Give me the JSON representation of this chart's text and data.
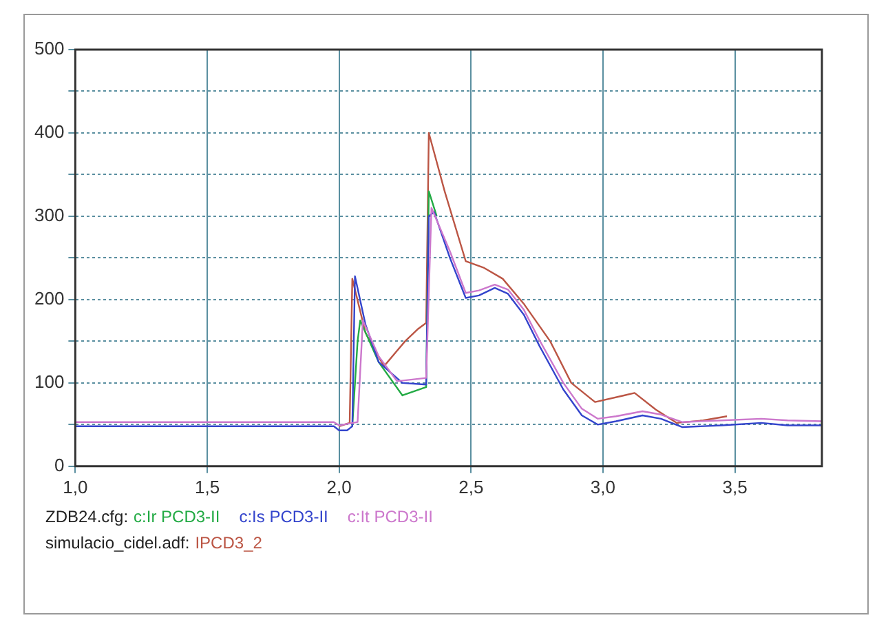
{
  "chart_data": {
    "type": "line",
    "xlim": [
      1.0,
      3.83
    ],
    "xticks": [
      {
        "value": 1.0,
        "label": "1,0"
      },
      {
        "value": 1.5,
        "label": "1,5"
      },
      {
        "value": 2.0,
        "label": "2,0"
      },
      {
        "value": 2.5,
        "label": "2,5"
      },
      {
        "value": 3.0,
        "label": "3,0"
      },
      {
        "value": 3.5,
        "label": "3,5"
      }
    ],
    "ylim": [
      0,
      500
    ],
    "yticks": [
      0,
      {
        "value": 50,
        "label": null
      },
      100,
      {
        "value": 150,
        "label": null
      },
      200,
      {
        "value": 250,
        "label": null
      },
      300,
      {
        "value": 350,
        "label": null
      },
      400,
      {
        "value": 450,
        "label": null
      },
      500
    ],
    "grid": true,
    "legend": "bottom",
    "marker": "none",
    "line_style": "solid",
    "annotations": [
      "ZDB24.cfg:",
      "simulacio_cidel.adf:"
    ],
    "series": [
      {
        "name": "c:Ir PCD3-II",
        "color": "#22aa44",
        "x": [
          2.05,
          2.07,
          2.08,
          2.15,
          2.24,
          2.33,
          2.34,
          2.37
        ],
        "values": [
          48,
          150,
          175,
          125,
          85,
          95,
          330,
          300
        ]
      },
      {
        "name": "c:Is PCD3-II",
        "color": "#3344cc",
        "x": [
          1.0,
          1.98,
          2.0,
          2.03,
          2.05,
          2.06,
          2.1,
          2.15,
          2.24,
          2.33,
          2.34,
          2.36,
          2.42,
          2.48,
          2.53,
          2.59,
          2.64,
          2.7,
          2.76,
          2.85,
          2.92,
          2.98,
          3.05,
          3.15,
          3.22,
          3.3,
          3.45,
          3.6,
          3.7,
          3.83
        ],
        "values": [
          48,
          48,
          43,
          43,
          48,
          228,
          170,
          125,
          100,
          98,
          300,
          305,
          250,
          202,
          205,
          214,
          207,
          182,
          144,
          92,
          61,
          50,
          54,
          61,
          57,
          47,
          49,
          52,
          49,
          49
        ]
      },
      {
        "name": "c:It PCD3-II",
        "color": "#cc77cc",
        "x": [
          1.0,
          1.98,
          2.0,
          2.07,
          2.09,
          2.15,
          2.22,
          2.33,
          2.35,
          2.42,
          2.48,
          2.53,
          2.59,
          2.64,
          2.7,
          2.76,
          2.85,
          2.92,
          2.98,
          3.05,
          3.15,
          3.22,
          3.3,
          3.45,
          3.6,
          3.7,
          3.83
        ],
        "values": [
          53,
          53,
          49,
          53,
          175,
          132,
          102,
          106,
          310,
          258,
          208,
          211,
          218,
          212,
          188,
          151,
          100,
          69,
          57,
          60,
          66,
          62,
          53,
          55,
          57,
          55,
          54
        ]
      },
      {
        "name": "IPCD3_2",
        "color": "#bb5544",
        "x": [
          2.0,
          2.04,
          2.05,
          2.1,
          2.17,
          2.25,
          2.3,
          2.33,
          2.34,
          2.4,
          2.48,
          2.55,
          2.62,
          2.7,
          2.8,
          2.88,
          2.97,
          3.08,
          3.12,
          3.2,
          3.28,
          3.38,
          3.47
        ],
        "values": [
          48,
          52,
          225,
          160,
          120,
          150,
          165,
          172,
          400,
          330,
          246,
          238,
          225,
          195,
          150,
          100,
          77,
          85,
          88,
          68,
          52,
          55,
          60
        ]
      }
    ]
  }
}
